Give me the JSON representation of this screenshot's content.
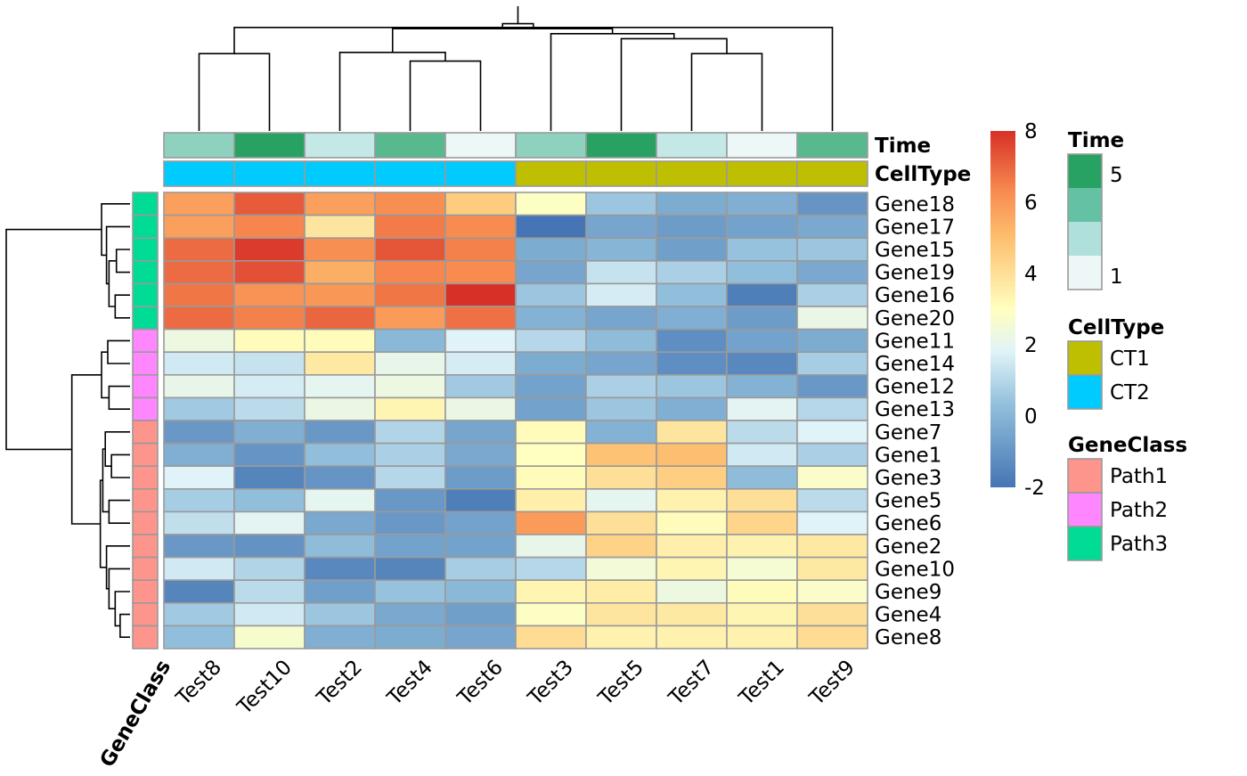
{
  "chart_data": {
    "type": "heatmap",
    "title": "",
    "columns": [
      "Test8",
      "Test10",
      "Test2",
      "Test4",
      "Test6",
      "Test3",
      "Test5",
      "Test7",
      "Test1",
      "Test9"
    ],
    "rows": [
      "Gene18",
      "Gene17",
      "Gene15",
      "Gene19",
      "Gene16",
      "Gene20",
      "Gene11",
      "Gene14",
      "Gene12",
      "Gene13",
      "Gene7",
      "Gene1",
      "Gene3",
      "Gene5",
      "Gene6",
      "Gene2",
      "Gene10",
      "Gene9",
      "Gene4",
      "Gene8"
    ],
    "values": [
      [
        5.8,
        7.2,
        5.8,
        6.2,
        4.6,
        2.9,
        0.5,
        -0.3,
        -0.2,
        -1.0
      ],
      [
        5.8,
        6.4,
        3.8,
        6.6,
        6.3,
        -2.0,
        -0.5,
        -0.8,
        -0.6,
        -0.4
      ],
      [
        6.9,
        7.8,
        6.2,
        7.3,
        6.5,
        -0.3,
        0.0,
        -0.7,
        0.4,
        0.5
      ],
      [
        6.9,
        7.4,
        5.4,
        6.4,
        6.3,
        -0.5,
        1.3,
        0.8,
        0.3,
        -0.4
      ],
      [
        6.7,
        6.1,
        6.0,
        6.7,
        8.0,
        0.5,
        1.6,
        0.3,
        -1.7,
        0.8
      ],
      [
        6.9,
        6.5,
        7.0,
        5.9,
        6.8,
        -0.1,
        -0.5,
        -0.2,
        -0.8,
        2.2
      ],
      [
        2.3,
        3.1,
        3.1,
        0.1,
        1.8,
        1.0,
        0.2,
        -1.2,
        -0.6,
        -0.3
      ],
      [
        1.5,
        1.3,
        3.7,
        2.1,
        1.6,
        -0.3,
        -0.5,
        -1.2,
        -1.4,
        0.7
      ],
      [
        2.1,
        1.6,
        2.0,
        2.3,
        0.6,
        -0.6,
        0.8,
        0.5,
        -0.1,
        -0.9
      ],
      [
        0.6,
        1.1,
        2.2,
        3.3,
        2.2,
        -0.6,
        0.5,
        -0.2,
        1.9,
        1.0
      ],
      [
        -0.9,
        -0.2,
        -0.9,
        0.9,
        -0.5,
        3.1,
        -0.1,
        3.8,
        1.1,
        1.8
      ],
      [
        -0.2,
        -1.0,
        0.3,
        0.8,
        -0.4,
        3.0,
        4.9,
        5.0,
        1.5,
        0.8
      ],
      [
        1.8,
        -1.5,
        -1.0,
        1.0,
        -0.8,
        3.1,
        4.0,
        4.5,
        0.2,
        2.8
      ],
      [
        0.7,
        0.3,
        2.0,
        -0.9,
        -1.7,
        3.5,
        2.0,
        3.4,
        4.0,
        1.1
      ],
      [
        1.2,
        1.9,
        -0.4,
        -0.9,
        -0.6,
        5.9,
        4.0,
        3.1,
        4.3,
        1.8
      ],
      [
        -0.9,
        -1.1,
        0.2,
        -0.6,
        -0.6,
        2.1,
        4.4,
        3.5,
        3.4,
        3.7
      ],
      [
        1.5,
        0.9,
        -1.4,
        -1.5,
        0.7,
        1.0,
        2.5,
        3.3,
        2.6,
        3.7
      ],
      [
        -1.5,
        1.1,
        -0.7,
        0.4,
        0.1,
        3.3,
        3.6,
        2.3,
        3.1,
        2.8
      ],
      [
        0.6,
        1.5,
        0.5,
        -0.4,
        -0.7,
        2.9,
        3.8,
        3.7,
        3.3,
        4.0
      ],
      [
        0.3,
        2.7,
        -0.2,
        -0.3,
        -0.5,
        4.1,
        3.4,
        3.4,
        3.4,
        4.1
      ]
    ],
    "color_scale": {
      "min": -2,
      "max": 8,
      "ticks": [
        -2,
        0,
        2,
        4,
        6,
        8
      ],
      "stops": [
        {
          "value": -2,
          "color": "#4575b4"
        },
        {
          "value": 0.3,
          "color": "#91bfdb"
        },
        {
          "value": 1.8,
          "color": "#e0f3f8"
        },
        {
          "value": 3,
          "color": "#ffffbf"
        },
        {
          "value": 5,
          "color": "#fdbf6f"
        },
        {
          "value": 6.3,
          "color": "#f88b50"
        },
        {
          "value": 8,
          "color": "#d73027"
        }
      ]
    },
    "column_annotations": [
      {
        "name": "Time",
        "values": [
          3,
          5,
          2,
          4,
          1,
          3,
          5,
          2,
          1,
          4
        ],
        "legend": {
          "title": "Time",
          "min_label": "1",
          "max_label": "5",
          "colors": [
            "#edf7f8",
            "#b0e0dc",
            "#64c1a3",
            "#28a263"
          ]
        },
        "colors": {
          "1": "#edf7f8",
          "2": "#c4e8e5",
          "3": "#8ed1bf",
          "4": "#58b98e",
          "5": "#28a263"
        }
      },
      {
        "name": "CellType",
        "values": [
          "CT2",
          "CT2",
          "CT2",
          "CT2",
          "CT2",
          "CT1",
          "CT1",
          "CT1",
          "CT1",
          "CT1"
        ],
        "legend": {
          "title": "CellType",
          "entries": [
            {
              "label": "CT1",
              "color": "#bebf00"
            },
            {
              "label": "CT2",
              "color": "#00cbff"
            }
          ]
        }
      }
    ],
    "row_annotations": [
      {
        "name": "GeneClass",
        "values": [
          "Path3",
          "Path3",
          "Path3",
          "Path3",
          "Path3",
          "Path3",
          "Path2",
          "Path2",
          "Path2",
          "Path2",
          "Path1",
          "Path1",
          "Path1",
          "Path1",
          "Path1",
          "Path1",
          "Path1",
          "Path1",
          "Path1",
          "Path1"
        ],
        "legend": {
          "title": "GeneClass",
          "entries": [
            {
              "label": "Path1",
              "color": "#fe958c"
            },
            {
              "label": "Path2",
              "color": "#fe86fe"
            },
            {
              "label": "Path3",
              "color": "#00dc96"
            }
          ]
        }
      }
    ],
    "col_dendrogram": [
      [
        3,
        4,
        0.56
      ],
      [
        7,
        8,
        0.62
      ],
      [
        0,
        1,
        0.62
      ],
      [
        2,
        10,
        0.63
      ],
      [
        6,
        11,
        0.74
      ],
      [
        5,
        14,
        0.78
      ],
      [
        9,
        12,
        0.83
      ],
      [
        13,
        15,
        0.82
      ],
      [
        16,
        17,
        0.86
      ],
      [
        18,
        19,
        1.0
      ]
    ],
    "row_dendrogram": [
      [
        2,
        3,
        0.11
      ],
      [
        4,
        5,
        0.12
      ],
      [
        20,
        21,
        0.17
      ],
      [
        1,
        22,
        0.19
      ],
      [
        0,
        23,
        0.23
      ],
      [
        8,
        9,
        0.17
      ],
      [
        6,
        7,
        0.18
      ],
      [
        25,
        26,
        0.23
      ],
      [
        18,
        19,
        0.08
      ],
      [
        17,
        28,
        0.12
      ],
      [
        16,
        29,
        0.17
      ],
      [
        15,
        30,
        0.19
      ],
      [
        13,
        14,
        0.17
      ],
      [
        11,
        12,
        0.15
      ],
      [
        10,
        33,
        0.2
      ],
      [
        32,
        34,
        0.22
      ],
      [
        31,
        35,
        0.24
      ],
      [
        27,
        36,
        0.47
      ],
      [
        24,
        37,
        1.0
      ]
    ]
  }
}
